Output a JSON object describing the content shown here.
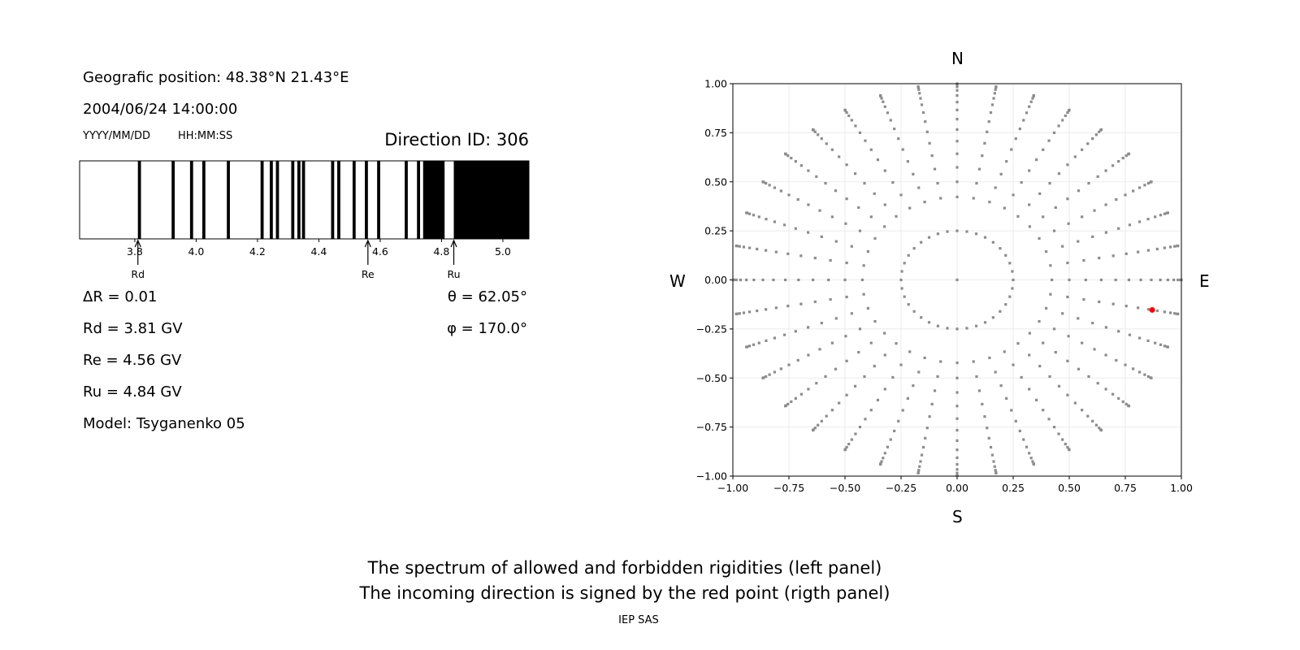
{
  "info": {
    "position": "Geografic position: 48.38°N 21.43°E",
    "datetime": "2004/06/24 14:00:00",
    "date_format": "YYYY/MM/DD",
    "time_format": "HH:MM:SS",
    "direction_id": "Direction ID: 306",
    "delta_r": "ΔR = 0.01",
    "rd": "Rd = 3.81 GV",
    "re": "Re = 4.56 GV",
    "ru": "Ru = 4.84 GV",
    "model": "Model: Tsyganenko 05",
    "theta": "θ = 62.05°",
    "phi": "φ = 170.0°"
  },
  "chart_data": [
    {
      "type": "bar",
      "description_kind": "rigidity spectrum (black = forbidden, white = allowed)",
      "xlim": [
        3.62,
        5.085
      ],
      "xticks": [
        "3.8",
        "4.0",
        "4.2",
        "4.4",
        "4.6",
        "4.8",
        "5.0"
      ],
      "forbidden_bands": [
        [
          3.81,
          3.82
        ],
        [
          3.92,
          3.93
        ],
        [
          3.98,
          3.99
        ],
        [
          4.02,
          4.03
        ],
        [
          4.1,
          4.11
        ],
        [
          4.21,
          4.22
        ],
        [
          4.24,
          4.25
        ],
        [
          4.26,
          4.27
        ],
        [
          4.31,
          4.32
        ],
        [
          4.33,
          4.34
        ],
        [
          4.345,
          4.355
        ],
        [
          4.44,
          4.45
        ],
        [
          4.46,
          4.47
        ],
        [
          4.51,
          4.52
        ],
        [
          4.55,
          4.56
        ],
        [
          4.59,
          4.6
        ],
        [
          4.68,
          4.69
        ],
        [
          4.72,
          4.73
        ],
        [
          4.74,
          4.81
        ],
        [
          4.84,
          5.085
        ]
      ],
      "markers": [
        {
          "label": "Rd",
          "value": 3.81
        },
        {
          "label": "Re",
          "value": 4.56
        },
        {
          "label": "Ru",
          "value": 4.84
        }
      ],
      "colors": {
        "forbidden": "#000000",
        "allowed": "#ffffff"
      }
    },
    {
      "type": "scatter",
      "xlim": [
        -1,
        1
      ],
      "ylim": [
        -1,
        1
      ],
      "xticks": [
        "−1.00",
        "−0.75",
        "−0.50",
        "−0.25",
        "0.00",
        "0.25",
        "0.50",
        "0.75",
        "1.00"
      ],
      "yticks": [
        "−1.00",
        "−0.75",
        "−0.50",
        "−0.25",
        "0.00",
        "0.25",
        "0.50",
        "0.75",
        "1.00"
      ],
      "grid": true,
      "compass": {
        "north": "N",
        "south": "S",
        "west": "W",
        "east": "E"
      },
      "grid_points": {
        "center": [
          0,
          0
        ],
        "ring_radius": 0.25,
        "ring_count": 36,
        "spoke_azimuth_step_deg": 10,
        "spoke_zenith_deg": [
          25,
          30,
          35,
          40,
          45,
          50,
          55,
          60,
          65,
          70,
          75,
          80,
          85,
          90
        ],
        "color": "#8c8c8c"
      },
      "incoming_direction": {
        "x": 0.87,
        "y": -0.153,
        "color": "#ff0000"
      }
    }
  ],
  "caption": {
    "line1": "The spectrum of allowed and forbidden rigidities (left panel)",
    "line2": "The incoming direction is signed by the red point (rigth panel)",
    "credit": "IEP SAS"
  }
}
